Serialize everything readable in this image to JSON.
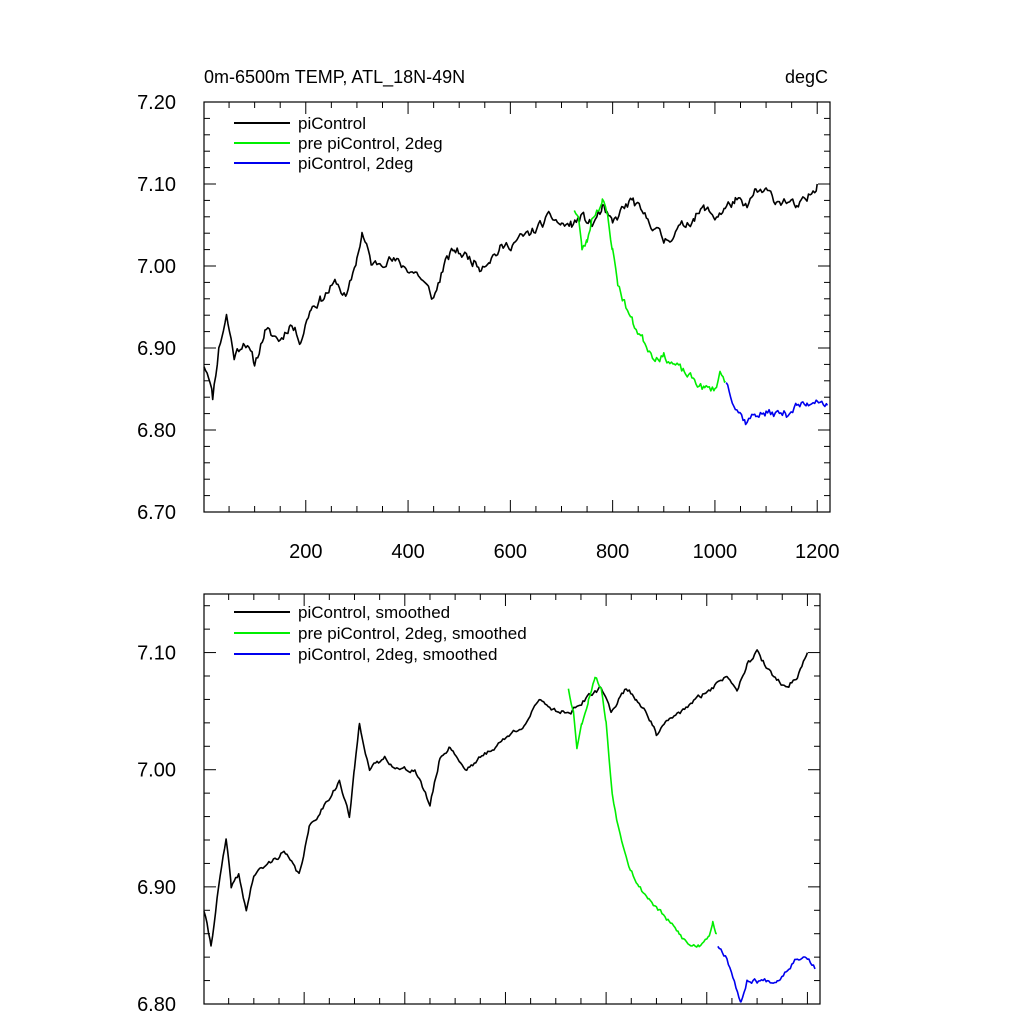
{
  "figure_title_left": "0m-6500m TEMP, ATL_18N-49N",
  "figure_title_right": "degC",
  "colors": {
    "series_1": "#000000",
    "series_2": "#00ee00",
    "series_3": "#0000ee",
    "axes": "#000000"
  },
  "chart_data": [
    {
      "type": "line",
      "title": "0m-6500m TEMP, ATL_18N-49N",
      "units": "degC",
      "xlim": [
        1,
        1225
      ],
      "ylim": [
        6.7,
        7.2
      ],
      "x_ticks": [
        200,
        400,
        600,
        800,
        1000,
        1200
      ],
      "x_tick_labels": [
        "200",
        "400",
        "600",
        "800",
        "1000",
        "1200"
      ],
      "y_ticks": [
        6.7,
        6.8,
        6.9,
        7.0,
        7.1,
        7.2
      ],
      "y_tick_labels": [
        "6.70",
        "6.80",
        "6.90",
        "7.00",
        "7.10",
        "7.20"
      ],
      "legend": [
        "piControl",
        "pre piControl, 2deg",
        "piControl, 2deg"
      ],
      "legend_position": "top-left",
      "series": [
        {
          "name": "piControl",
          "color": "#000000",
          "noise": 0.012,
          "seed": 11,
          "anchors": [
            [
              1,
              6.88
            ],
            [
              10,
              6.87
            ],
            [
              18,
              6.84
            ],
            [
              30,
              6.9
            ],
            [
              45,
              6.94
            ],
            [
              60,
              6.89
            ],
            [
              80,
              6.91
            ],
            [
              100,
              6.88
            ],
            [
              120,
              6.92
            ],
            [
              150,
              6.91
            ],
            [
              170,
              6.93
            ],
            [
              190,
              6.91
            ],
            [
              210,
              6.95
            ],
            [
              230,
              6.96
            ],
            [
              260,
              6.98
            ],
            [
              280,
              6.96
            ],
            [
              300,
              7.01
            ],
            [
              310,
              7.04
            ],
            [
              330,
              7.0
            ],
            [
              360,
              7.01
            ],
            [
              390,
              7.0
            ],
            [
              420,
              6.99
            ],
            [
              440,
              6.97
            ],
            [
              450,
              6.96
            ],
            [
              470,
              7.0
            ],
            [
              490,
              7.02
            ],
            [
              520,
              7.01
            ],
            [
              540,
              7.0
            ],
            [
              560,
              7.01
            ],
            [
              580,
              7.02
            ],
            [
              610,
              7.03
            ],
            [
              640,
              7.04
            ],
            [
              660,
              7.05
            ],
            [
              680,
              7.06
            ],
            [
              700,
              7.05
            ],
            [
              720,
              7.05
            ],
            [
              740,
              7.06
            ],
            [
              760,
              7.05
            ],
            [
              780,
              7.07
            ],
            [
              800,
              7.05
            ],
            [
              820,
              7.07
            ],
            [
              840,
              7.08
            ],
            [
              860,
              7.06
            ],
            [
              880,
              7.05
            ],
            [
              900,
              7.03
            ],
            [
              920,
              7.04
            ],
            [
              940,
              7.05
            ],
            [
              960,
              7.06
            ],
            [
              980,
              7.07
            ],
            [
              1000,
              7.06
            ],
            [
              1020,
              7.07
            ],
            [
              1040,
              7.08
            ],
            [
              1060,
              7.07
            ],
            [
              1080,
              7.09
            ],
            [
              1100,
              7.09
            ],
            [
              1120,
              7.08
            ],
            [
              1140,
              7.08
            ],
            [
              1160,
              7.07
            ],
            [
              1180,
              7.08
            ],
            [
              1200,
              7.1
            ]
          ]
        },
        {
          "name": "pre piControl, 2deg",
          "color": "#00ee00",
          "noise": 0.01,
          "seed": 23,
          "anchors": [
            [
              725,
              7.07
            ],
            [
              733,
              7.06
            ],
            [
              740,
              7.02
            ],
            [
              750,
              7.03
            ],
            [
              760,
              7.06
            ],
            [
              770,
              7.07
            ],
            [
              780,
              7.08
            ],
            [
              790,
              7.06
            ],
            [
              800,
              7.02
            ],
            [
              810,
              6.98
            ],
            [
              820,
              6.96
            ],
            [
              840,
              6.93
            ],
            [
              860,
              6.91
            ],
            [
              880,
              6.89
            ],
            [
              900,
              6.89
            ],
            [
              920,
              6.88
            ],
            [
              940,
              6.87
            ],
            [
              960,
              6.86
            ],
            [
              980,
              6.85
            ],
            [
              1000,
              6.85
            ],
            [
              1010,
              6.87
            ],
            [
              1020,
              6.86
            ]
          ]
        },
        {
          "name": "piControl, 2deg",
          "color": "#0000ee",
          "noise": 0.01,
          "seed": 37,
          "anchors": [
            [
              1022,
              6.86
            ],
            [
              1040,
              6.83
            ],
            [
              1060,
              6.81
            ],
            [
              1080,
              6.82
            ],
            [
              1100,
              6.82
            ],
            [
              1120,
              6.82
            ],
            [
              1140,
              6.82
            ],
            [
              1160,
              6.83
            ],
            [
              1180,
              6.83
            ],
            [
              1200,
              6.84
            ],
            [
              1220,
              6.83
            ]
          ]
        }
      ]
    },
    {
      "type": "line",
      "title": "",
      "xlim": [
        1,
        1225
      ],
      "ylim": [
        6.8,
        7.15
      ],
      "x_ticks": [
        200,
        400,
        600,
        800,
        1000,
        1200
      ],
      "x_tick_labels": [],
      "y_ticks": [
        6.8,
        6.9,
        7.0,
        7.1
      ],
      "y_tick_labels": [
        "6.80",
        "6.90",
        "7.00",
        "7.10"
      ],
      "legend": [
        "piControl, smoothed",
        "pre piControl, 2deg, smoothed",
        "piControl, 2deg, smoothed"
      ],
      "legend_position": "top-left",
      "series": [
        {
          "name": "piControl, smoothed",
          "color": "#000000",
          "noise": 0.004,
          "seed": 41,
          "anchors": [
            [
              1,
              6.88
            ],
            [
              15,
              6.85
            ],
            [
              30,
              6.9
            ],
            [
              45,
              6.94
            ],
            [
              55,
              6.9
            ],
            [
              70,
              6.91
            ],
            [
              85,
              6.88
            ],
            [
              100,
              6.91
            ],
            [
              130,
              6.92
            ],
            [
              160,
              6.93
            ],
            [
              190,
              6.91
            ],
            [
              210,
              6.95
            ],
            [
              240,
              6.97
            ],
            [
              270,
              6.99
            ],
            [
              290,
              6.96
            ],
            [
              300,
              7.0
            ],
            [
              310,
              7.04
            ],
            [
              330,
              7.0
            ],
            [
              360,
              7.01
            ],
            [
              390,
              7.0
            ],
            [
              420,
              7.0
            ],
            [
              450,
              6.97
            ],
            [
              470,
              7.01
            ],
            [
              490,
              7.02
            ],
            [
              520,
              7.0
            ],
            [
              550,
              7.01
            ],
            [
              580,
              7.02
            ],
            [
              610,
              7.03
            ],
            [
              640,
              7.04
            ],
            [
              670,
              7.06
            ],
            [
              700,
              7.05
            ],
            [
              730,
              7.05
            ],
            [
              760,
              7.06
            ],
            [
              790,
              7.07
            ],
            [
              810,
              7.05
            ],
            [
              840,
              7.07
            ],
            [
              860,
              7.06
            ],
            [
              880,
              7.05
            ],
            [
              900,
              7.03
            ],
            [
              920,
              7.04
            ],
            [
              950,
              7.05
            ],
            [
              980,
              7.06
            ],
            [
              1010,
              7.07
            ],
            [
              1040,
              7.08
            ],
            [
              1060,
              7.07
            ],
            [
              1080,
              7.09
            ],
            [
              1100,
              7.1
            ],
            [
              1130,
              7.08
            ],
            [
              1160,
              7.07
            ],
            [
              1180,
              7.08
            ],
            [
              1200,
              7.1
            ]
          ]
        },
        {
          "name": "pre piControl, 2deg, smoothed",
          "color": "#00ee00",
          "noise": 0.004,
          "seed": 53,
          "anchors": [
            [
              725,
              7.07
            ],
            [
              735,
              7.05
            ],
            [
              742,
              7.02
            ],
            [
              752,
              7.04
            ],
            [
              765,
              7.06
            ],
            [
              778,
              7.08
            ],
            [
              790,
              7.07
            ],
            [
              800,
              7.04
            ],
            [
              812,
              6.98
            ],
            [
              825,
              6.95
            ],
            [
              845,
              6.92
            ],
            [
              865,
              6.9
            ],
            [
              885,
              6.89
            ],
            [
              905,
              6.88
            ],
            [
              925,
              6.87
            ],
            [
              945,
              6.86
            ],
            [
              965,
              6.85
            ],
            [
              985,
              6.85
            ],
            [
              1005,
              6.86
            ],
            [
              1012,
              6.87
            ],
            [
              1020,
              6.86
            ]
          ]
        },
        {
          "name": "piControl, 2deg, smoothed",
          "color": "#0000ee",
          "noise": 0.004,
          "seed": 67,
          "anchors": [
            [
              1022,
              6.85
            ],
            [
              1040,
              6.84
            ],
            [
              1055,
              6.82
            ],
            [
              1068,
              6.8
            ],
            [
              1080,
              6.82
            ],
            [
              1100,
              6.82
            ],
            [
              1120,
              6.82
            ],
            [
              1140,
              6.82
            ],
            [
              1160,
              6.83
            ],
            [
              1180,
              6.84
            ],
            [
              1200,
              6.84
            ],
            [
              1215,
              6.83
            ]
          ]
        }
      ]
    }
  ]
}
